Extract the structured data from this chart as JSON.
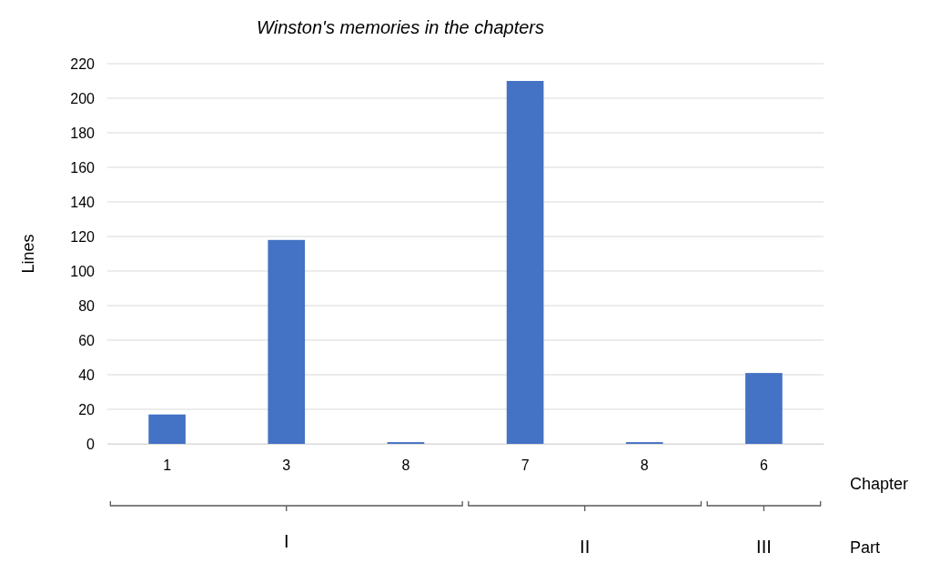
{
  "chart_data": {
    "type": "bar",
    "title": "Winston's memories in the chapters",
    "xlabel": "Chapter",
    "ylabel": "Lines",
    "categories": [
      "1",
      "3",
      "8",
      "7",
      "8",
      "6"
    ],
    "values": [
      17,
      118,
      1,
      210,
      1,
      41
    ],
    "color": "#4472c4",
    "ylim": [
      0,
      220
    ],
    "yticks": [
      0,
      20,
      40,
      60,
      80,
      100,
      120,
      140,
      160,
      180,
      200,
      220
    ],
    "grid": "y",
    "annotations": [
      "I",
      "II",
      "III",
      "Part"
    ]
  }
}
